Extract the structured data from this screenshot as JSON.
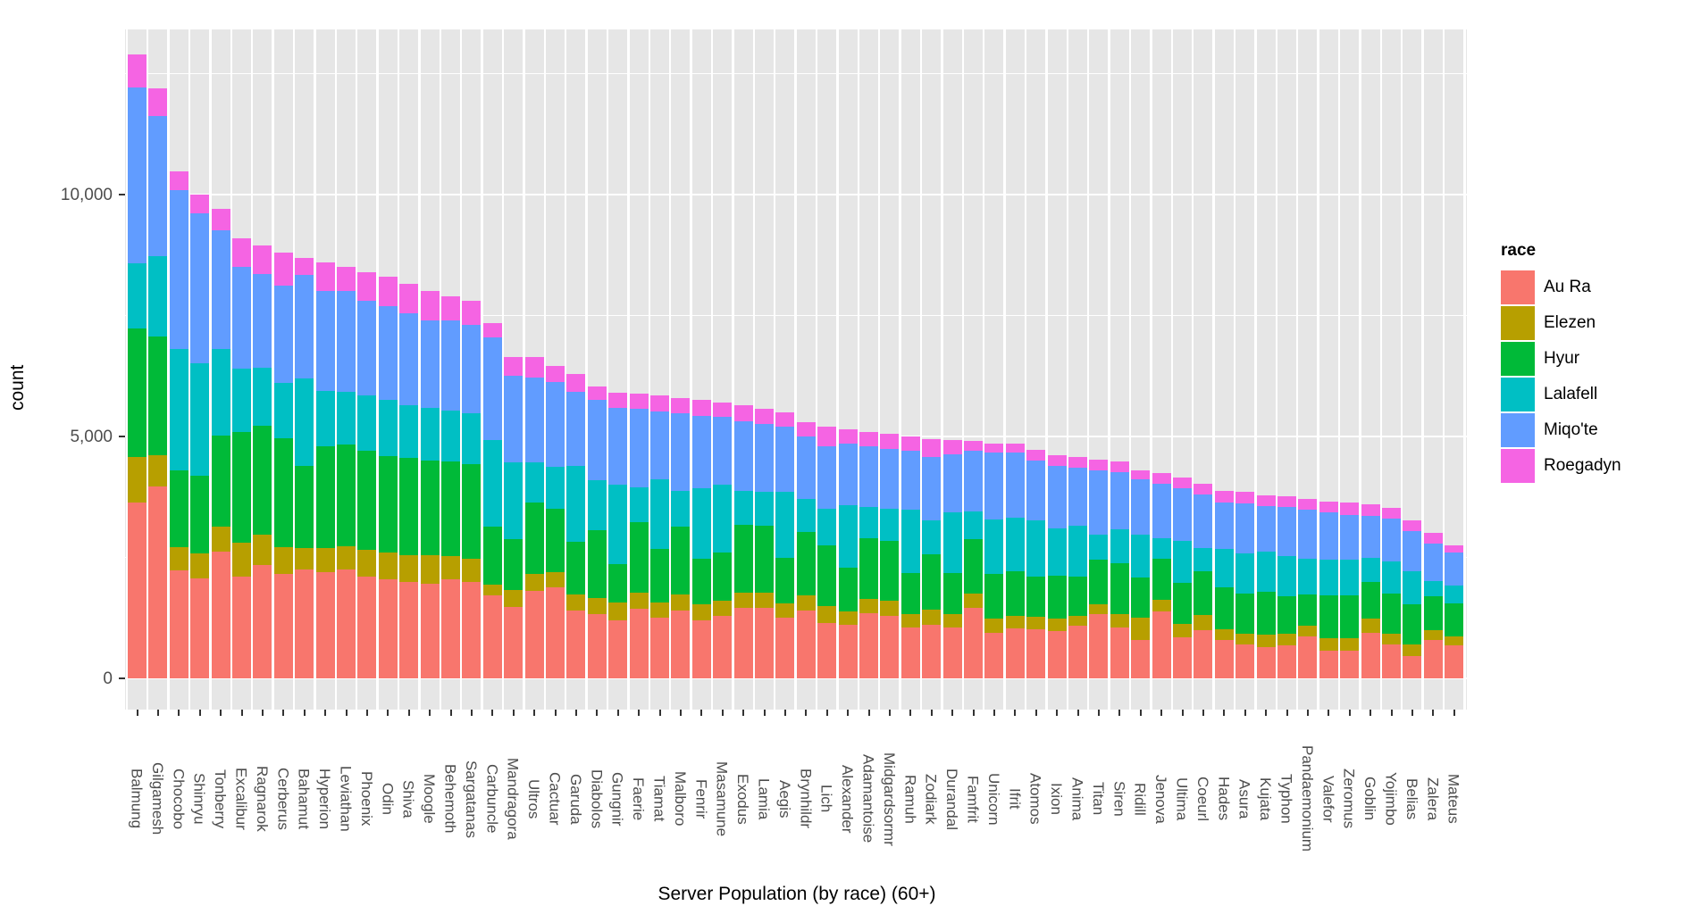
{
  "chart_data": {
    "type": "bar",
    "stacked": true,
    "title": "Server Population (by race) (60+)",
    "xlabel": "Server Population (by race) (60+)",
    "ylabel": "count",
    "legend_title": "race",
    "legend_position": "right",
    "grid": true,
    "panel_background": "#E6E6E6",
    "ylim": [
      0,
      13400
    ],
    "yticks": [
      {
        "label": "0",
        "value": 0
      },
      {
        "label": "5,000",
        "value": 5000
      },
      {
        "label": "10,000",
        "value": 10000
      }
    ],
    "yticks_minor": [
      2500,
      7500,
      12500
    ],
    "categories": [
      "Balmung",
      "Gilgamesh",
      "Chocobo",
      "Shinryu",
      "Tonberry",
      "Excalibur",
      "Ragnarok",
      "Cerberus",
      "Bahamut",
      "Hyperion",
      "Leviathan",
      "Phoenix",
      "Odin",
      "Shiva",
      "Moogle",
      "Behemoth",
      "Sargatanas",
      "Carbuncle",
      "Mandragora",
      "Ultros",
      "Cactuar",
      "Garuda",
      "Diabolos",
      "Gungnir",
      "Faerie",
      "Tiamat",
      "Malboro",
      "Fenrir",
      "Masamune",
      "Exodus",
      "Lamia",
      "Aegis",
      "Brynhildr",
      "Lich",
      "Alexander",
      "Adamantoise",
      "Midgardsormr",
      "Ramuh",
      "Zodiark",
      "Durandal",
      "Famfrit",
      "Unicorn",
      "Ifrit",
      "Atomos",
      "Ixion",
      "Anima",
      "Titan",
      "Siren",
      "Ridill",
      "Jenova",
      "Ultima",
      "Coeurl",
      "Hades",
      "Asura",
      "Kujata",
      "Typhon",
      "Pandaemonium",
      "Valefor",
      "Zeromus",
      "Goblin",
      "Yojimbo",
      "Belias",
      "Zalera",
      "Mateus"
    ],
    "series": [
      {
        "name": "Au Ra",
        "color": "#F8766D",
        "values": [
          3630,
          3970,
          2230,
          2070,
          2620,
          2100,
          2350,
          2150,
          2250,
          2200,
          2250,
          2100,
          2050,
          2000,
          1950,
          2050,
          2000,
          1720,
          1480,
          1810,
          1880,
          1400,
          1320,
          1200,
          1440,
          1250,
          1400,
          1200,
          1300,
          1450,
          1450,
          1250,
          1400,
          1150,
          1100,
          1350,
          1300,
          1050,
          1100,
          1050,
          1450,
          950,
          1040,
          1020,
          980,
          1080,
          1320,
          1050,
          790,
          1380,
          850,
          1000,
          800,
          710,
          650,
          680,
          860,
          580,
          580,
          950,
          710,
          460,
          800,
          680
        ]
      },
      {
        "name": "Elezen",
        "color": "#B79F00",
        "values": [
          940,
          650,
          480,
          520,
          520,
          700,
          620,
          560,
          450,
          500,
          480,
          550,
          550,
          550,
          600,
          480,
          480,
          220,
          340,
          340,
          310,
          340,
          340,
          370,
          340,
          320,
          330,
          330,
          300,
          320,
          320,
          300,
          320,
          350,
          280,
          300,
          300,
          280,
          320,
          280,
          310,
          280,
          250,
          250,
          250,
          220,
          220,
          280,
          460,
          250,
          280,
          310,
          220,
          220,
          250,
          250,
          220,
          250,
          250,
          280,
          220,
          250,
          190,
          190
        ]
      },
      {
        "name": "Hyur",
        "color": "#00BA38",
        "values": [
          2660,
          2440,
          1590,
          1590,
          1880,
          2300,
          2250,
          2250,
          1700,
          2100,
          2100,
          2050,
          2000,
          2000,
          1950,
          1950,
          1950,
          1200,
          1050,
          1480,
          1320,
          1080,
          1410,
          800,
          1450,
          1100,
          1400,
          950,
          1000,
          1400,
          1380,
          950,
          1300,
          1250,
          900,
          1250,
          1250,
          850,
          1150,
          850,
          1110,
          920,
          920,
          830,
          890,
          800,
          920,
          1050,
          830,
          850,
          850,
          900,
          860,
          830,
          890,
          770,
          650,
          890,
          890,
          770,
          830,
          830,
          710,
          680
        ]
      },
      {
        "name": "Lalafell",
        "color": "#00BFC4",
        "values": [
          1350,
          1660,
          2500,
          2340,
          1780,
          1300,
          1200,
          1150,
          1800,
          1150,
          1100,
          1150,
          1150,
          1100,
          1100,
          1050,
          1050,
          1780,
          1600,
          830,
          860,
          1570,
          1020,
          1630,
          710,
          1450,
          750,
          1450,
          1400,
          700,
          700,
          1350,
          680,
          750,
          1300,
          650,
          650,
          1300,
          700,
          1250,
          580,
          1140,
          1110,
          1170,
          980,
          1050,
          520,
          700,
          890,
          420,
          860,
          490,
          800,
          830,
          830,
          830,
          740,
          740,
          740,
          490,
          650,
          680,
          310,
          370
        ]
      },
      {
        "name": "Miqo'te",
        "color": "#619CFF",
        "values": [
          3640,
          2910,
          3290,
          3100,
          2460,
          2100,
          1930,
          2000,
          2150,
          2050,
          2070,
          1950,
          1950,
          1900,
          1800,
          1870,
          1820,
          2120,
          1780,
          1750,
          1750,
          1540,
          1660,
          1600,
          1630,
          1400,
          1600,
          1500,
          1400,
          1450,
          1400,
          1350,
          1300,
          1300,
          1270,
          1250,
          1250,
          1220,
          1300,
          1200,
          1260,
          1380,
          1350,
          1230,
          1290,
          1200,
          1320,
          1180,
          1140,
          1130,
          1090,
          1110,
          950,
          1020,
          950,
          1020,
          1020,
          980,
          920,
          860,
          890,
          830,
          770,
          680
        ]
      },
      {
        "name": "Roegadyn",
        "color": "#F564E3",
        "values": [
          680,
          570,
          390,
          390,
          440,
          600,
          600,
          690,
          350,
          600,
          500,
          600,
          600,
          600,
          600,
          500,
          500,
          310,
          400,
          430,
          340,
          370,
          280,
          310,
          310,
          330,
          320,
          320,
          300,
          330,
          330,
          300,
          300,
          400,
          300,
          300,
          300,
          300,
          380,
          290,
          190,
          190,
          190,
          220,
          220,
          220,
          220,
          220,
          190,
          220,
          220,
          220,
          250,
          250,
          220,
          220,
          220,
          220,
          250,
          250,
          220,
          220,
          220,
          150
        ]
      }
    ]
  },
  "axes": {
    "y_title": "count",
    "x_title": "Server Population (by race) (60+)"
  },
  "legend": {
    "title": "race",
    "entries": [
      {
        "label": "Au Ra",
        "color": "#F8766D"
      },
      {
        "label": "Elezen",
        "color": "#B79F00"
      },
      {
        "label": "Hyur",
        "color": "#00BA38"
      },
      {
        "label": "Lalafell",
        "color": "#00BFC4"
      },
      {
        "label": "Miqo'te",
        "color": "#619CFF"
      },
      {
        "label": "Roegadyn",
        "color": "#F564E3"
      }
    ]
  }
}
